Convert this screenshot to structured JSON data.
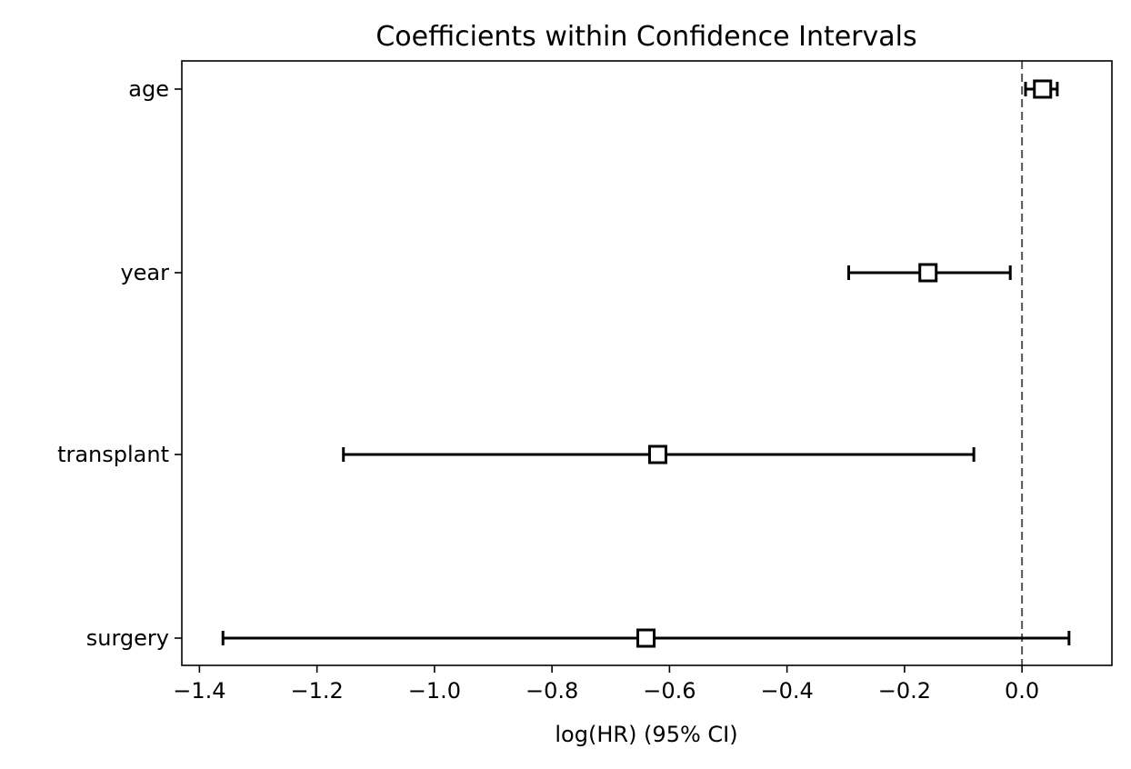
{
  "chart_data": {
    "type": "errorbar",
    "title": "Coefficients within Confidence Intervals",
    "xlabel": "log(HR) (95% CI)",
    "ylabel": "",
    "xlim": [
      -1.43,
      0.153
    ],
    "x_ticks": [
      {
        "value": -1.4,
        "label": "−1.4"
      },
      {
        "value": -1.2,
        "label": "−1.2"
      },
      {
        "value": -1.0,
        "label": "−1.0"
      },
      {
        "value": -0.8,
        "label": "−0.8"
      },
      {
        "value": -0.6,
        "label": "−0.6"
      },
      {
        "value": -0.4,
        "label": "−0.4"
      },
      {
        "value": -0.2,
        "label": "−0.2"
      },
      {
        "value": 0.0,
        "label": "0.0"
      }
    ],
    "reference_line": {
      "x": 0.0,
      "style": "dashed",
      "color": "#555555"
    },
    "grid": false,
    "marker": "square-open",
    "line_color": "#000000",
    "categories": [
      "age",
      "year",
      "transplant",
      "surgery"
    ],
    "coef": [
      0.035,
      -0.16,
      -0.62,
      -0.64
    ],
    "ci_lower": [
      0.006,
      -0.295,
      -1.155,
      -1.36
    ],
    "ci_upper": [
      0.06,
      -0.02,
      -0.082,
      0.08
    ]
  }
}
